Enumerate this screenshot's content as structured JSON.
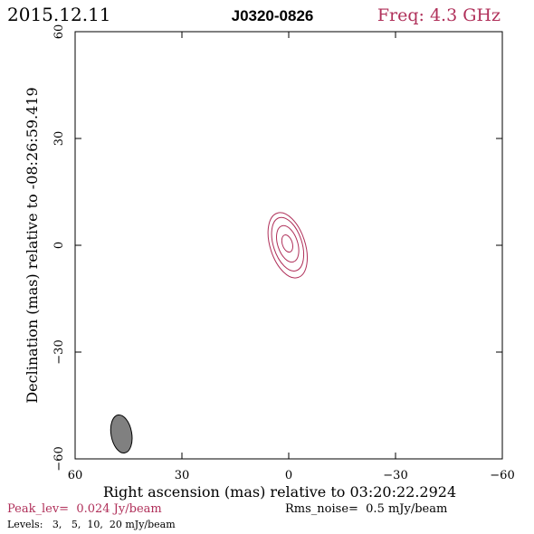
{
  "header": {
    "date": "2015.12.11",
    "source": "J0320-0826",
    "freq": "Freq: 4.3 GHz"
  },
  "footer": {
    "peak": "Peak_lev=  0.024 Jy/beam",
    "rms": "Rms_noise=  0.5 mJy/beam",
    "levels": "Levels:   3,   5,  10,  20 mJy/beam"
  },
  "colors": {
    "contour": "#b0305a",
    "accent_text": "#b0305a",
    "beam_fill": "#808080",
    "axis": "#000000"
  },
  "chart_data": {
    "type": "contour",
    "title": "J0320-0826",
    "xlabel": "Right ascension (mas) relative to 03:20:22.2924",
    "ylabel": "Declination (mas) relative to -08:26:59.419",
    "xlim": [
      60,
      -60
    ],
    "ylim": [
      -60,
      60
    ],
    "xticks": [
      60,
      30,
      0,
      -30,
      -60
    ],
    "yticks": [
      -60,
      -30,
      0,
      30,
      60
    ],
    "xtick_labels": [
      "60",
      "30",
      "0",
      "−30",
      "−60"
    ],
    "ytick_labels": [
      "−60",
      "−30",
      "0",
      "30",
      "60"
    ],
    "contour_levels_mJy": [
      3,
      5,
      10,
      20
    ],
    "contours": [
      {
        "level": 3,
        "x_center": 0.3,
        "y_center": 0.0,
        "semi_major": 9.5,
        "semi_minor": 4.9,
        "pa_deg": -18
      },
      {
        "level": 5,
        "x_center": 0.3,
        "y_center": 0.3,
        "semi_major": 7.8,
        "semi_minor": 4.0,
        "pa_deg": -18
      },
      {
        "level": 10,
        "x_center": 0.3,
        "y_center": 0.4,
        "semi_major": 5.3,
        "semi_minor": 2.8,
        "pa_deg": -18
      },
      {
        "level": 20,
        "x_center": 0.4,
        "y_center": 0.5,
        "semi_major": 2.5,
        "semi_minor": 1.4,
        "pa_deg": -18
      }
    ],
    "beam": {
      "x_center": 47.0,
      "y_center": -53.0,
      "semi_major": 5.4,
      "semi_minor": 2.9,
      "pa_deg": -10
    },
    "peak_Jy_per_beam": 0.024,
    "rms_noise_mJy_per_beam": 0.5
  }
}
